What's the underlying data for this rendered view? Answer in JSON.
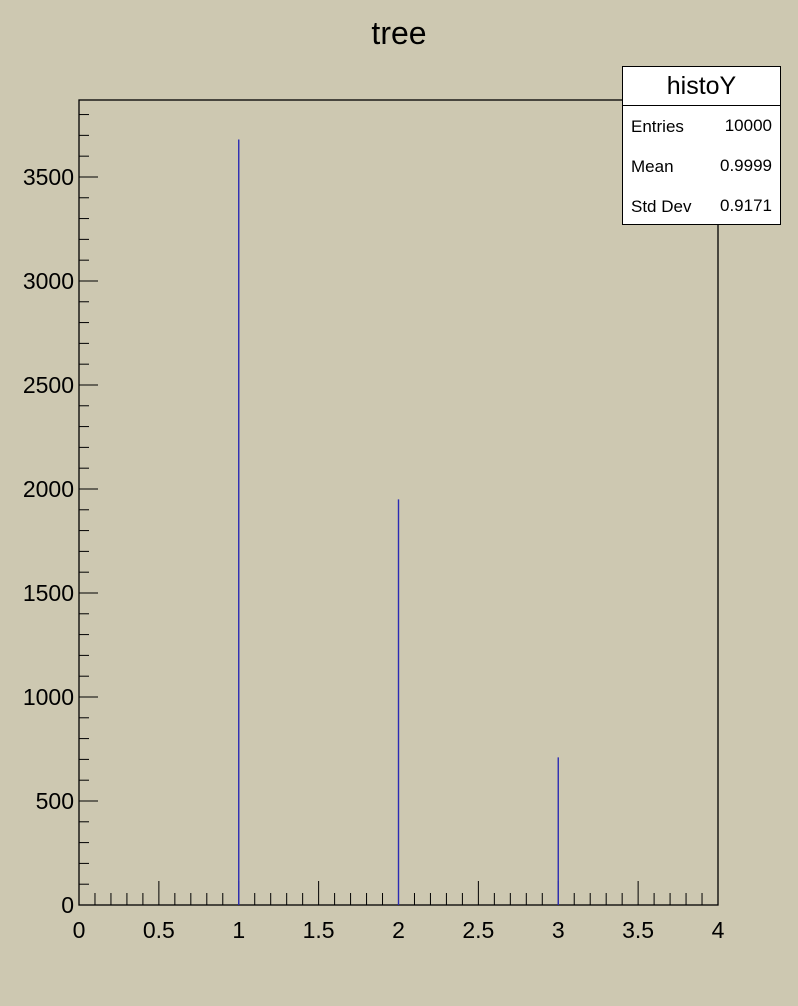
{
  "chart_data": {
    "type": "bar",
    "title": "tree",
    "xlabel": "",
    "ylabel": "",
    "xlim": [
      0,
      4
    ],
    "ylim": [
      0,
      3870
    ],
    "x_ticks": [
      "0",
      "0.5",
      "1",
      "1.5",
      "2",
      "2.5",
      "3",
      "3.5",
      "4"
    ],
    "y_ticks": [
      "0",
      "500",
      "1000",
      "1500",
      "2000",
      "2500",
      "3000",
      "3500"
    ],
    "series": [
      {
        "x": [
          1,
          2,
          3
        ],
        "values": [
          3680,
          1950,
          710
        ],
        "color": "#2b2bb3"
      }
    ],
    "grid": false,
    "background_color": "#cdc8b1"
  },
  "stats": {
    "title": "histoY",
    "rows": [
      {
        "label": "Entries",
        "value": "10000"
      },
      {
        "label": "Mean",
        "value": "0.9999"
      },
      {
        "label": "Std Dev",
        "value": "0.9171"
      }
    ]
  }
}
